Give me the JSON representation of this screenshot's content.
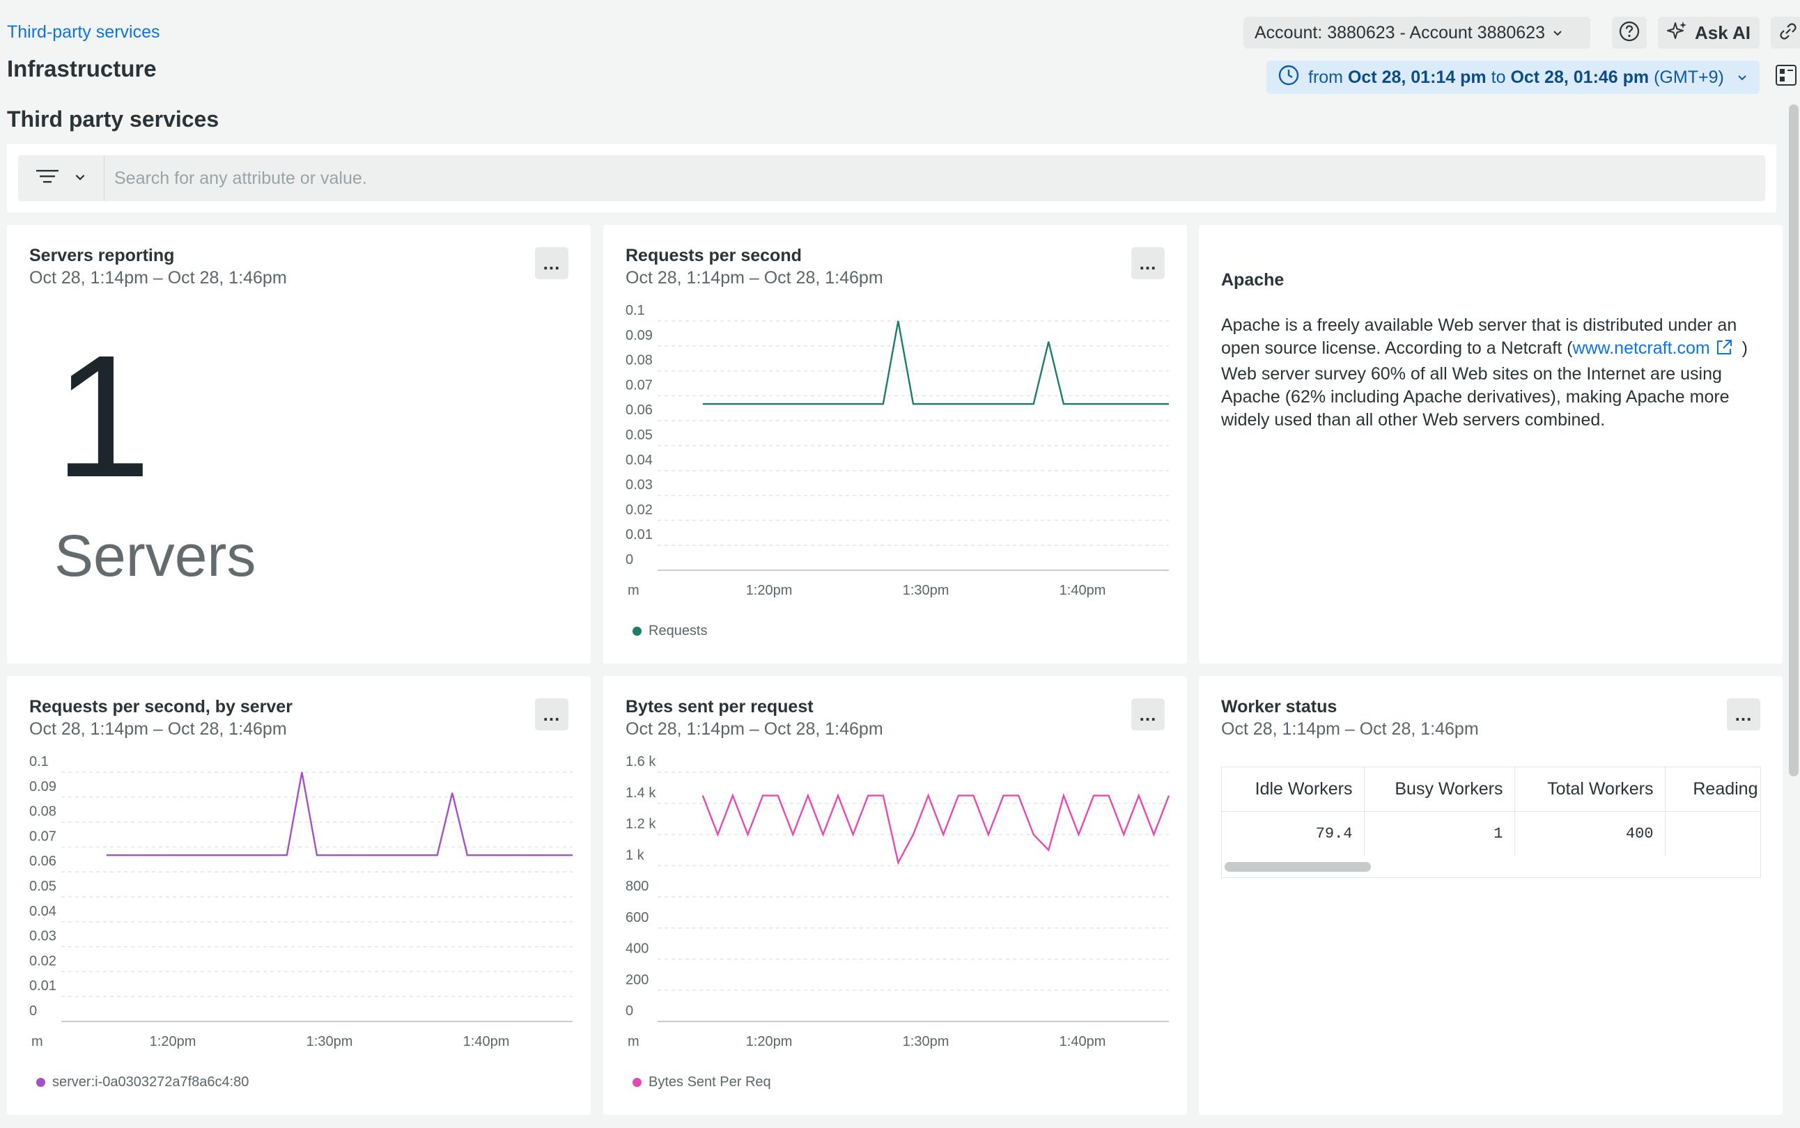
{
  "header": {
    "breadcrumb": "Third-party services",
    "page_title": "Infrastructure",
    "section_title": "Third party services",
    "account_label": "Account: 3880623 - Account 3880623",
    "ask_ai_label": "Ask AI",
    "time_range": {
      "from_word": "from",
      "from_value": "Oct 28, 01:14 pm",
      "to_word": "to",
      "to_value": "Oct 28, 01:46 pm",
      "timezone": "(GMT+9)"
    }
  },
  "filter": {
    "placeholder": "Search for any attribute or value."
  },
  "colors": {
    "accent": "#0c74df",
    "requests_series": "#1b7d6a",
    "server_series": "#a64fc9",
    "bytes_series": "#e549b4"
  },
  "widgets": {
    "servers": {
      "title": "Servers reporting",
      "subtitle": "Oct 28, 1:14pm – Oct 28, 1:46pm",
      "value": "1",
      "unit": "Servers",
      "menu_label": "..."
    },
    "rps": {
      "title": "Requests per second",
      "subtitle": "Oct 28, 1:14pm – Oct 28, 1:46pm",
      "menu_label": "..."
    },
    "apache": {
      "title": "Apache",
      "text_before": "Apache is a freely available Web server that is distributed under an open source license. According to a Netcraft (",
      "link_text": "www.netcraft.com",
      "text_after": " ) Web server survey 60% of all Web sites on the Internet are using Apache (62% including Apache derivatives), making Apache more widely used than all other Web servers combined."
    },
    "rps_server": {
      "title": "Requests per second, by server",
      "subtitle": "Oct 28, 1:14pm – Oct 28, 1:46pm",
      "menu_label": "..."
    },
    "bytes": {
      "title": "Bytes sent per request",
      "subtitle": "Oct 28, 1:14pm – Oct 28, 1:46pm",
      "menu_label": "..."
    },
    "worker": {
      "title": "Worker status",
      "subtitle": "Oct 28, 1:14pm – Oct 28, 1:46pm",
      "menu_label": "...",
      "columns": [
        "Idle Workers",
        "Busy Workers",
        "Total Workers",
        "Reading"
      ],
      "row": [
        "79.4",
        "1",
        "400",
        ""
      ]
    }
  },
  "chart_data": [
    {
      "type": "line",
      "title": "Requests per second",
      "y_ticks": [
        "0.1",
        "0.09",
        "0.08",
        "0.07",
        "0.06",
        "0.05",
        "0.04",
        "0.03",
        "0.02",
        "0.01",
        "0"
      ],
      "x_ticks": [
        "m",
        "1:20pm",
        "1:30pm",
        "1:40pm"
      ],
      "ylim": [
        0,
        0.1
      ],
      "xlim": [
        0,
        34
      ],
      "series": [
        {
          "name": "Requests",
          "color": "#1b7d6a",
          "x": [
            3,
            15,
            16,
            17,
            25,
            26,
            27,
            34
          ],
          "y": [
            0.0667,
            0.0667,
            0.1,
            0.0667,
            0.0667,
            0.0917,
            0.0667,
            0.0667
          ]
        }
      ]
    },
    {
      "type": "line",
      "title": "Requests per second, by server",
      "y_ticks": [
        "0.1",
        "0.09",
        "0.08",
        "0.07",
        "0.06",
        "0.05",
        "0.04",
        "0.03",
        "0.02",
        "0.01",
        "0"
      ],
      "x_ticks": [
        "m",
        "1:20pm",
        "1:30pm",
        "1:40pm"
      ],
      "ylim": [
        0,
        0.1
      ],
      "xlim": [
        0,
        34
      ],
      "series": [
        {
          "name": "server:i-0a0303272a7f8a6c4:80",
          "color": "#a64fc9",
          "x": [
            3,
            15,
            16,
            17,
            25,
            26,
            27,
            34
          ],
          "y": [
            0.0667,
            0.0667,
            0.1,
            0.0667,
            0.0667,
            0.0917,
            0.0667,
            0.0667
          ]
        }
      ]
    },
    {
      "type": "line",
      "title": "Bytes sent per request",
      "y_ticks": [
        "1.6 k",
        "1.4 k",
        "1.2 k",
        "1 k",
        "800",
        "600",
        "400",
        "200",
        "0"
      ],
      "x_ticks": [
        "m",
        "1:20pm",
        "1:30pm",
        "1:40pm"
      ],
      "ylim": [
        0,
        1600
      ],
      "xlim": [
        0,
        34
      ],
      "series": [
        {
          "name": "Bytes Sent Per Req",
          "color": "#e549b4",
          "x": [
            3,
            4,
            5,
            6,
            7,
            8,
            9,
            10,
            11,
            12,
            13,
            14,
            15,
            16,
            17,
            18,
            19,
            20,
            21,
            22,
            23,
            24,
            25,
            26,
            27,
            28,
            29,
            30,
            31,
            32,
            33,
            34
          ],
          "y": [
            1450,
            1200,
            1450,
            1200,
            1450,
            1450,
            1200,
            1450,
            1200,
            1450,
            1200,
            1450,
            1450,
            1020,
            1200,
            1450,
            1200,
            1450,
            1450,
            1200,
            1450,
            1450,
            1200,
            1100,
            1450,
            1200,
            1450,
            1450,
            1200,
            1450,
            1200,
            1450
          ]
        }
      ]
    }
  ]
}
